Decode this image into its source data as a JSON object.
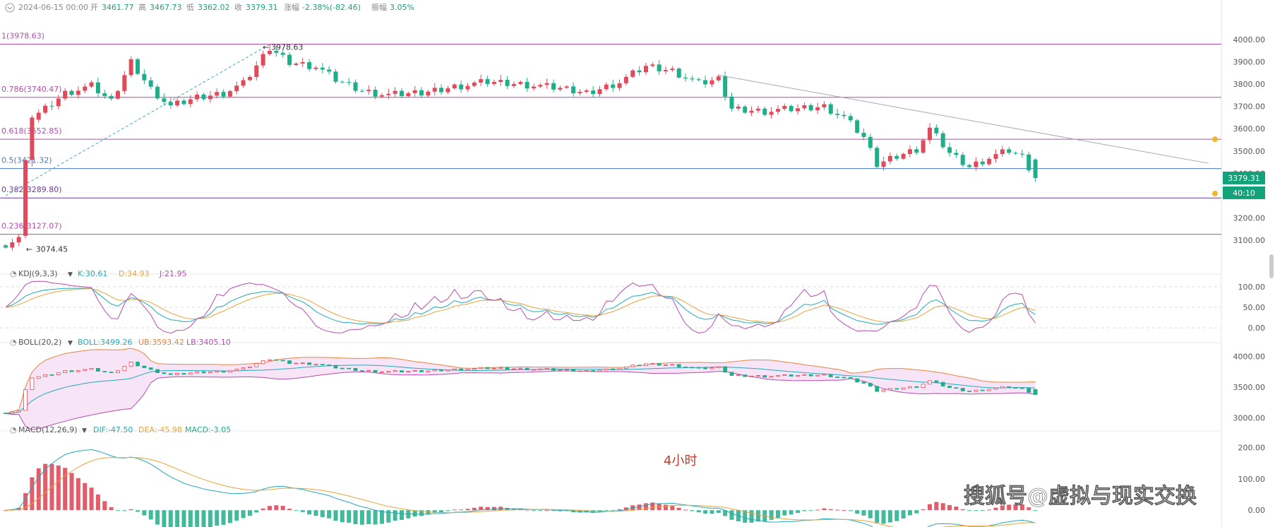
{
  "header": {
    "date": "2024-06-15 00:00",
    "open_label": "开",
    "open": "3461.77",
    "high_label": "高",
    "high": "3467.73",
    "low_label": "低",
    "low": "3362.02",
    "close_label": "收",
    "close": "3379.31",
    "change_label": "涨幅",
    "change": "-2.38%(-82.46)",
    "amp_label": "振幅",
    "amp": "3.05%"
  },
  "price_badge": "3379.31",
  "countdown_badge": "40:10",
  "high_marker": "3978.63",
  "low_marker": "3074.45",
  "timeframe_label": "4小时",
  "watermark": "搜狐号@虚拟与现实交换",
  "fib_levels": [
    {
      "label": "1(3978.63)",
      "price": 3978.63,
      "color": "#b04cb0"
    },
    {
      "label": "0.786(3740.47)",
      "price": 3740.47,
      "color": "#b04cb0"
    },
    {
      "label": "0.618(3552.85)",
      "price": 3552.85,
      "color": "#b04cb0"
    },
    {
      "label": "0.5(3421.32)",
      "price": 3421.32,
      "color": "#4a77c4"
    },
    {
      "label": "0.382(3289.80)",
      "price": 3289.8,
      "color": "#6b3aa0"
    },
    {
      "label": "0.236(3127.07)",
      "price": 3127.07,
      "color": "#b04cb0"
    }
  ],
  "price_axis": [
    "4000.00",
    "3900.00",
    "3800.00",
    "3700.00",
    "3600.00",
    "3500.00",
    "3400.00",
    "3300.00",
    "3200.00",
    "3100.00"
  ],
  "kdj": {
    "title": "KDJ(9,3,3)",
    "k": "K:30.61",
    "d": "D:34.93",
    "j": "J:21.95",
    "axis": [
      "100.00",
      "50.00",
      "0.00"
    ]
  },
  "boll": {
    "title": "BOLL(20,2)",
    "mid": "BOLL:3499.26",
    "ub": "UB:3593.42",
    "lb": "LB:3405.10",
    "axis": [
      "4000.00",
      "3500.00",
      "3000.00"
    ]
  },
  "macd": {
    "title": "MACD(12,26,9)",
    "dif": "DIF:-47.50",
    "dea": "DEA:-45.98",
    "macd": "MACD:-3.05",
    "axis": [
      "200.00",
      "100.00",
      "0.00"
    ]
  },
  "colors": {
    "up": "#e04a5a",
    "down": "#1fae8a",
    "k": "#22aabb",
    "d": "#e8a33c",
    "j": "#b84db0",
    "ub": "#e8853c",
    "lb": "#b84db0",
    "mid": "#22aabb",
    "fill": "#f3d8f3",
    "badge": "#12a37a"
  },
  "chart_data": {
    "type": "candlestick",
    "timeframe": "4小时",
    "ylim": [
      3050,
      4050
    ],
    "anchors": [
      {
        "i": 0,
        "c": 3085
      },
      {
        "i": 2,
        "c": 3110
      },
      {
        "i": 3,
        "c": 3430
      },
      {
        "i": 4,
        "c": 3650
      },
      {
        "i": 6,
        "c": 3690
      },
      {
        "i": 9,
        "c": 3760
      },
      {
        "i": 13,
        "c": 3790
      },
      {
        "i": 16,
        "c": 3720
      },
      {
        "i": 19,
        "c": 3900
      },
      {
        "i": 22,
        "c": 3780
      },
      {
        "i": 25,
        "c": 3700
      },
      {
        "i": 29,
        "c": 3740
      },
      {
        "i": 33,
        "c": 3760
      },
      {
        "i": 36,
        "c": 3800
      },
      {
        "i": 40,
        "c": 3960
      },
      {
        "i": 43,
        "c": 3900
      },
      {
        "i": 47,
        "c": 3880
      },
      {
        "i": 50,
        "c": 3820
      },
      {
        "i": 54,
        "c": 3770
      },
      {
        "i": 58,
        "c": 3750
      },
      {
        "i": 63,
        "c": 3760
      },
      {
        "i": 68,
        "c": 3790
      },
      {
        "i": 73,
        "c": 3810
      },
      {
        "i": 78,
        "c": 3800
      },
      {
        "i": 84,
        "c": 3780
      },
      {
        "i": 88,
        "c": 3760
      },
      {
        "i": 93,
        "c": 3810
      },
      {
        "i": 97,
        "c": 3880
      },
      {
        "i": 101,
        "c": 3860
      },
      {
        "i": 105,
        "c": 3800
      },
      {
        "i": 108,
        "c": 3820
      },
      {
        "i": 110,
        "c": 3690
      },
      {
        "i": 115,
        "c": 3680
      },
      {
        "i": 120,
        "c": 3690
      },
      {
        "i": 124,
        "c": 3700
      },
      {
        "i": 127,
        "c": 3650
      },
      {
        "i": 130,
        "c": 3560
      },
      {
        "i": 132,
        "c": 3440
      },
      {
        "i": 135,
        "c": 3480
      },
      {
        "i": 138,
        "c": 3510
      },
      {
        "i": 140,
        "c": 3600
      },
      {
        "i": 143,
        "c": 3490
      },
      {
        "i": 146,
        "c": 3430
      },
      {
        "i": 149,
        "c": 3470
      },
      {
        "i": 152,
        "c": 3500
      },
      {
        "i": 154,
        "c": 3470
      },
      {
        "i": 156,
        "c": 3379.31
      }
    ]
  }
}
